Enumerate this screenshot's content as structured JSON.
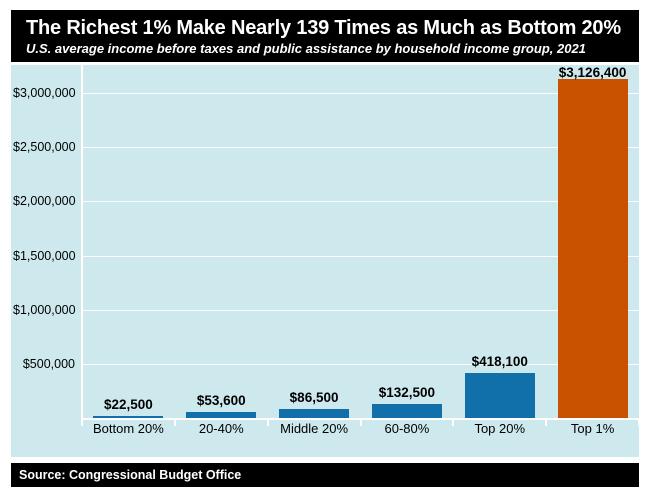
{
  "header": {
    "title": "The Richest 1% Make Nearly 139 Times as Much as Bottom 20%",
    "subtitle": "U.S. average income before taxes and public assistance by household income group, 2021"
  },
  "footer": {
    "source": "Source: Congressional Budget Office"
  },
  "chart_data": {
    "type": "bar",
    "title": "The Richest 1% Make Nearly 139 Times as Much as Bottom 20%",
    "subtitle": "U.S. average income before taxes and public assistance by household income group, 2021",
    "source": "Source: Congressional Budget Office",
    "categories": [
      "Bottom 20%",
      "20-40%",
      "Middle 20%",
      "60-80%",
      "Top 20%",
      "Top 1%"
    ],
    "values": [
      22500,
      53600,
      86500,
      132500,
      418100,
      3126400
    ],
    "value_labels": [
      "$22,500",
      "$53,600",
      "$86,500",
      "$132,500",
      "$418,100",
      "$3,126,400"
    ],
    "bar_colors": [
      "#1170aa",
      "#1170aa",
      "#1170aa",
      "#1170aa",
      "#1170aa",
      "#c85200"
    ],
    "xlabel": "",
    "ylabel": "",
    "y_ticks": [
      "$500,000",
      "$1,000,000",
      "$1,500,000",
      "$2,000,000",
      "$2,500,000",
      "$3,000,000"
    ],
    "y_tick_values": [
      500000,
      1000000,
      1500000,
      2000000,
      2500000,
      3000000
    ],
    "ylim": [
      0,
      3250000
    ],
    "grid": true,
    "legend": false,
    "colors": {
      "plot_background": "#cde9ed",
      "gridline": "#ffffff",
      "bar_blue": "#1170aa",
      "bar_orange": "#c85200",
      "header_background": "#000000",
      "header_text": "#ffffff",
      "label_text": "#000000"
    }
  }
}
